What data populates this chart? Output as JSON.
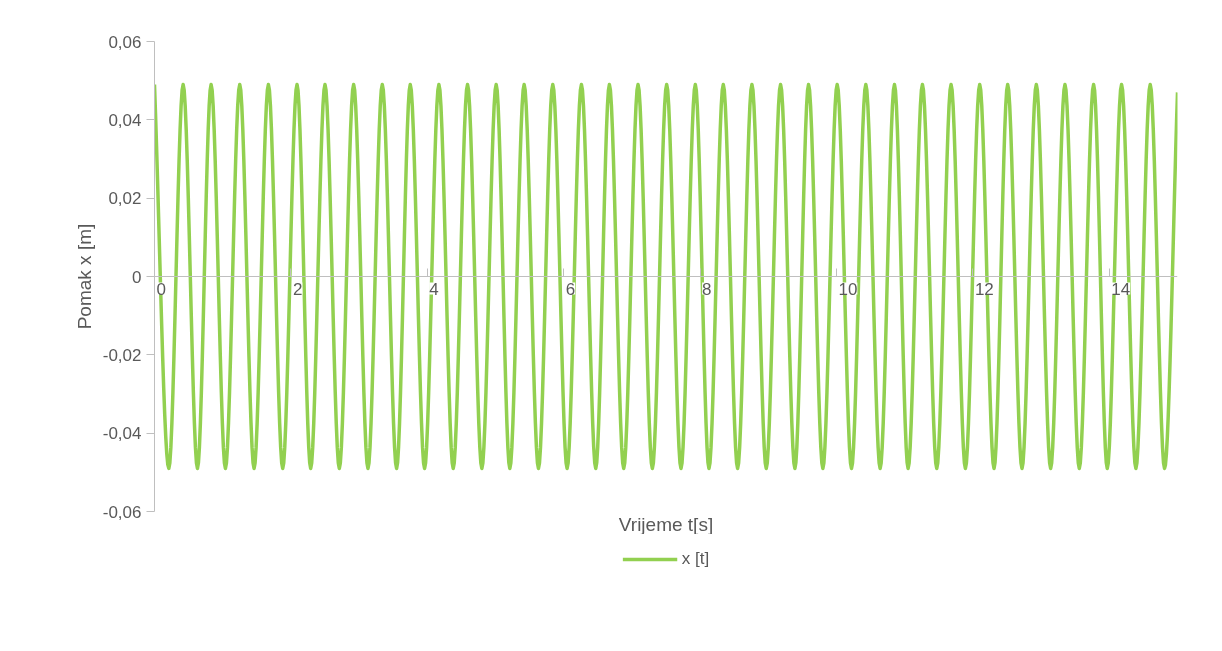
{
  "chart_data": {
    "type": "line",
    "xlabel": "Vrijeme t[s]",
    "ylabel": "Pomak x [m]",
    "xlim": [
      0,
      15.0
    ],
    "xticks": [
      0,
      2,
      4,
      6,
      8,
      10,
      12,
      14
    ],
    "ylim": [
      -0.06,
      0.06
    ],
    "yticks": [
      {
        "value": -0.06,
        "label": "-0,06"
      },
      {
        "value": -0.04,
        "label": "-0,04"
      },
      {
        "value": -0.02,
        "label": "-0,02"
      },
      {
        "value": 0,
        "label": "0"
      },
      {
        "value": 0.02,
        "label": "0,02"
      },
      {
        "value": 0.04,
        "label": "0,04"
      },
      {
        "value": 0.06,
        "label": "0,06"
      }
    ],
    "grid": false,
    "legend": "bottom",
    "marker": "none",
    "line_style": "solid",
    "series": [
      {
        "name": "x [t]",
        "color": "#92d050",
        "x": [
          0,
          0.21,
          0.42,
          0.63,
          0.83,
          1.04,
          1.25,
          1.46,
          1.67,
          1.88,
          2.09,
          2.29,
          2.5,
          2.71,
          2.92,
          3.13,
          3.34,
          3.55,
          3.75,
          3.96,
          4.17,
          4.38,
          4.59,
          4.8,
          5.01,
          5.21,
          5.42,
          5.63,
          5.84,
          6.05,
          6.26,
          6.47,
          6.67,
          6.88,
          7.09,
          7.3,
          7.51,
          7.72,
          7.93,
          8.13,
          8.34,
          8.55,
          8.76,
          8.97,
          9.18,
          9.39,
          9.59,
          9.8,
          10.01,
          10.22,
          10.43,
          10.64,
          10.85,
          11.05,
          11.26,
          11.47,
          11.68,
          11.89,
          12.1,
          12.31,
          12.51,
          12.72,
          12.93,
          13.14,
          13.35,
          13.56,
          13.77,
          13.97,
          14.18,
          14.39,
          14.6,
          14.81,
          15.0
        ],
        "values": [
          0.049,
          -0.049,
          0.049,
          -0.049,
          0.049,
          -0.049,
          0.049,
          -0.049,
          0.049,
          -0.049,
          0.049,
          -0.049,
          0.049,
          -0.049,
          0.049,
          -0.049,
          0.049,
          -0.049,
          0.049,
          -0.049,
          0.049,
          -0.049,
          0.049,
          -0.049,
          0.049,
          -0.049,
          0.049,
          -0.049,
          0.049,
          -0.049,
          0.049,
          -0.049,
          0.049,
          -0.049,
          0.049,
          -0.049,
          0.049,
          -0.049,
          0.049,
          -0.049,
          0.049,
          -0.049,
          0.049,
          -0.049,
          0.049,
          -0.049,
          0.049,
          -0.049,
          0.049,
          -0.049,
          0.049,
          -0.049,
          0.049,
          -0.049,
          0.049,
          -0.049,
          0.049,
          -0.049,
          0.049,
          -0.049,
          0.049,
          -0.049,
          0.049,
          -0.049,
          0.049,
          -0.049,
          0.049,
          -0.049,
          0.049,
          -0.049,
          0.049,
          -0.049,
          0.047
        ]
      }
    ]
  }
}
